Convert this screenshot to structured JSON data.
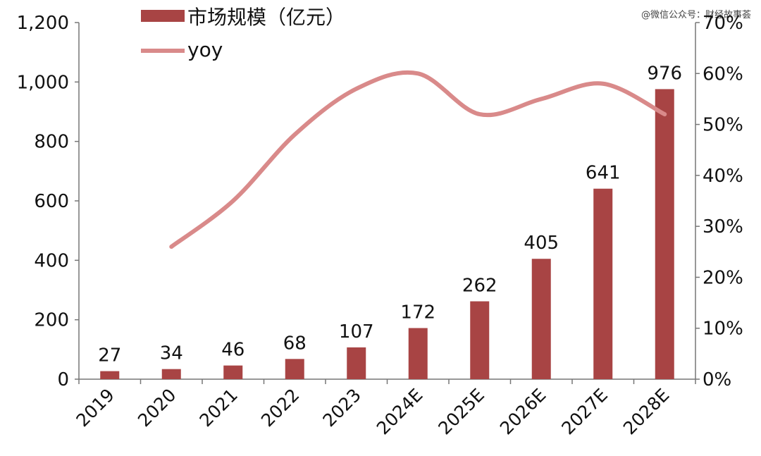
{
  "watermark": "@微信公众号：财经故事荟",
  "colors": {
    "bar": "#A84444",
    "line": "#D98A8A",
    "axis": "#777777",
    "text": "#111111"
  },
  "chart_data": {
    "type": "bar",
    "categories": [
      "2019",
      "2020",
      "2021",
      "2022",
      "2023",
      "2024E",
      "2025E",
      "2026E",
      "2027E",
      "2028E"
    ],
    "series": [
      {
        "name": "市场规模（亿元）",
        "type": "bar",
        "axis": "left",
        "values": [
          27,
          34,
          46,
          68,
          107,
          172,
          262,
          405,
          641,
          976
        ],
        "labels": [
          "27",
          "34",
          "46",
          "68",
          "107",
          "172",
          "262",
          "405",
          "641",
          "976"
        ]
      },
      {
        "name": "yoy",
        "type": "line",
        "axis": "right",
        "values": [
          null,
          26,
          35,
          48,
          57,
          60,
          52,
          55,
          58,
          52
        ]
      }
    ],
    "y_left": {
      "min": 0,
      "max": 1200,
      "ticks": [
        0,
        200,
        400,
        600,
        800,
        1000,
        1200
      ],
      "tick_labels": [
        "0",
        "200",
        "400",
        "600",
        "800",
        "1,000",
        "1,200"
      ]
    },
    "y_right": {
      "min": 0,
      "max": 70,
      "ticks": [
        0,
        10,
        20,
        30,
        40,
        50,
        60,
        70
      ],
      "tick_labels": [
        "0%",
        "10%",
        "20%",
        "30%",
        "40%",
        "50%",
        "60%",
        "70%"
      ]
    },
    "legend_position": "top-left",
    "grid": false
  }
}
